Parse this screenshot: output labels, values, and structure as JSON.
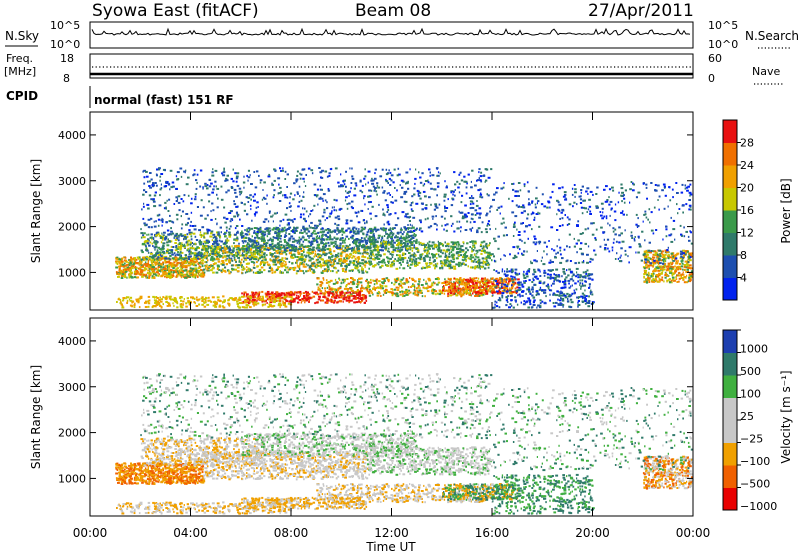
{
  "header": {
    "station": "Syowa East (fitACF)",
    "beam": "Beam 08",
    "date": "27/Apr/2011"
  },
  "noise_panel": {
    "left_label": "N.Sky",
    "left_ticks": [
      "10^5",
      "10^0"
    ],
    "right_label": "N.Search",
    "right_ticks": [
      "10^5",
      "10^0"
    ]
  },
  "freq_panel": {
    "left_label_1": "Freq.",
    "left_label_2": "[MHz]",
    "left_ticks": [
      "18",
      "8"
    ],
    "right_label": "Nave",
    "right_ticks": [
      "60",
      "0"
    ]
  },
  "cpid": {
    "label": "CPID",
    "value": "normal (fast) 151 RF"
  },
  "colors": {
    "power": [
      "#0022ee",
      "#1d4fb0",
      "#2f7a6a",
      "#3a9a4a",
      "#c8c800",
      "#f0a000",
      "#f07000",
      "#e81010"
    ],
    "velocity": [
      "#e80000",
      "#f06000",
      "#f0a000",
      "#c8c8c8",
      "#c8c8c8",
      "#40b040",
      "#2f7a6a",
      "#1d3fb0"
    ]
  },
  "chart_data": [
    {
      "type": "heatmap",
      "name": "power",
      "ylabel": "Slant Range [km]",
      "ylim": [
        180,
        4500
      ],
      "y_ticks": [
        "1000",
        "2000",
        "3000",
        "4000"
      ],
      "xlim": [
        0,
        24
      ],
      "colorbar_label": "Power [dB]",
      "colorbar_ticks": [
        "4",
        "8",
        "12",
        "16",
        "20",
        "24",
        "28"
      ],
      "colorbar_range": [
        0,
        32
      ]
    },
    {
      "type": "heatmap",
      "name": "velocity",
      "ylabel": "Slant Range [km]",
      "ylim": [
        180,
        4500
      ],
      "y_ticks": [
        "1000",
        "2000",
        "3000",
        "4000"
      ],
      "xlim": [
        0,
        24
      ],
      "xlabel": "Time UT",
      "x_ticks": [
        "00:00",
        "04:00",
        "08:00",
        "12:00",
        "16:00",
        "20:00",
        "00:00"
      ],
      "colorbar_label": "Velocity [m s⁻¹]",
      "colorbar_ticks": [
        "1000",
        "500",
        "100",
        "25",
        "−25",
        "−100",
        "−500",
        "−1000"
      ]
    }
  ]
}
